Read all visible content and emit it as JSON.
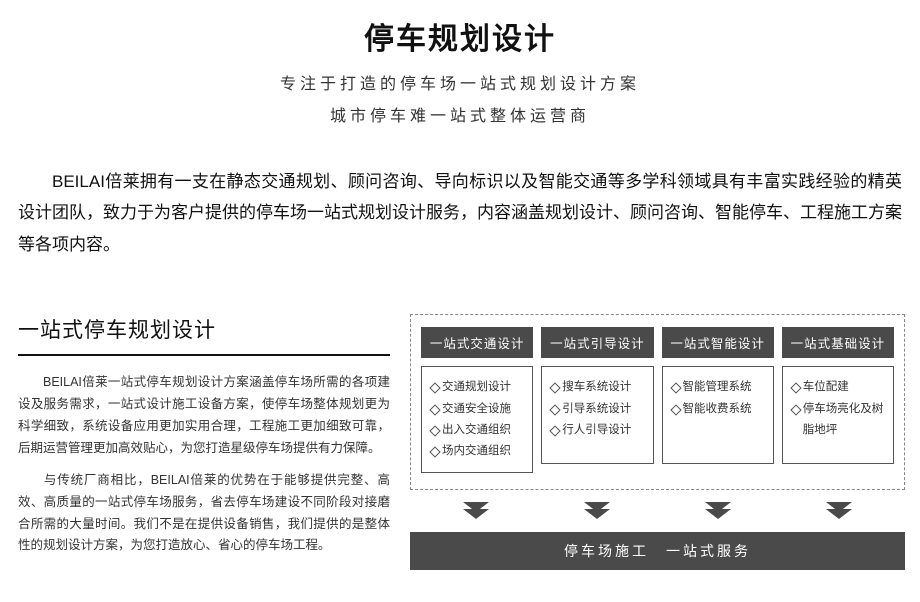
{
  "header": {
    "title": "停车规划设计",
    "subtitle1": "专注于打造的停车场一站式规划设计方案",
    "subtitle2": "城市停车难一站式整体运营商"
  },
  "intro": "BEILAI倍莱拥有一支在静态交通规划、顾问咨询、导向标识以及智能交通等多学科领域具有丰富实践经验的精英设计团队，致力于为客户提供的停车场一站式规划设计服务，内容涵盖规划设计、顾问咨询、智能停车、工程施工方案等各项内容。",
  "section_title": "一站式停车规划设计",
  "paragraphs": [
    "BEILAI倍莱一站式停车规划设计方案涵盖停车场所需的各项建设及服务需求，一站式设计施工设备方案，使停车场整体规划更为科学细致，系统设备应用更加实用合理，工程施工更加细致可靠，后期运营管理更加高效贴心，为您打造星级停车场提供有力保障。",
    "与传统厂商相比，BEILAI倍莱的优势在于能够提供完整、高效、高质量的一站式停车场服务，省去停车场建设不同阶段对接磨合所需的大量时间。我们不是在提供设备销售，我们提供的是整体性的规划设计方案，为您打造放心、省心的停车场工程。"
  ],
  "columns": [
    {
      "header": "一站式交通设计",
      "items": [
        "交通规划设计",
        "交通安全设施",
        "出入交通组织",
        "场内交通组织"
      ]
    },
    {
      "header": "一站式引导设计",
      "items": [
        "搜车系统设计",
        "引导系统设计",
        "行人引导设计"
      ]
    },
    {
      "header": "一站式智能设计",
      "items": [
        "智能管理系统",
        "智能收费系统"
      ]
    },
    {
      "header": "一站式基础设计",
      "items": [
        "车位配建",
        "停车场亮化及树脂地坪"
      ]
    }
  ],
  "bottom_bar": "停车场施工　一站式服务",
  "style": {
    "title_fontsize": 30,
    "subtitle_fontsize": 16,
    "intro_fontsize": 17,
    "section_title_fontsize": 21,
    "para_fontsize": 12.5,
    "col_header_fontsize": 12.5,
    "col_item_fontsize": 11.5,
    "bottom_bar_fontsize": 14,
    "col_header_bg": "#4a4a4a",
    "col_header_color": "#ffffff",
    "border_color": "#555555",
    "dashed_border_color": "#888888",
    "text_color": "#111111",
    "body_text_color": "#333333",
    "arrow_color": "#4a4a4a",
    "background_color": "#ffffff"
  }
}
